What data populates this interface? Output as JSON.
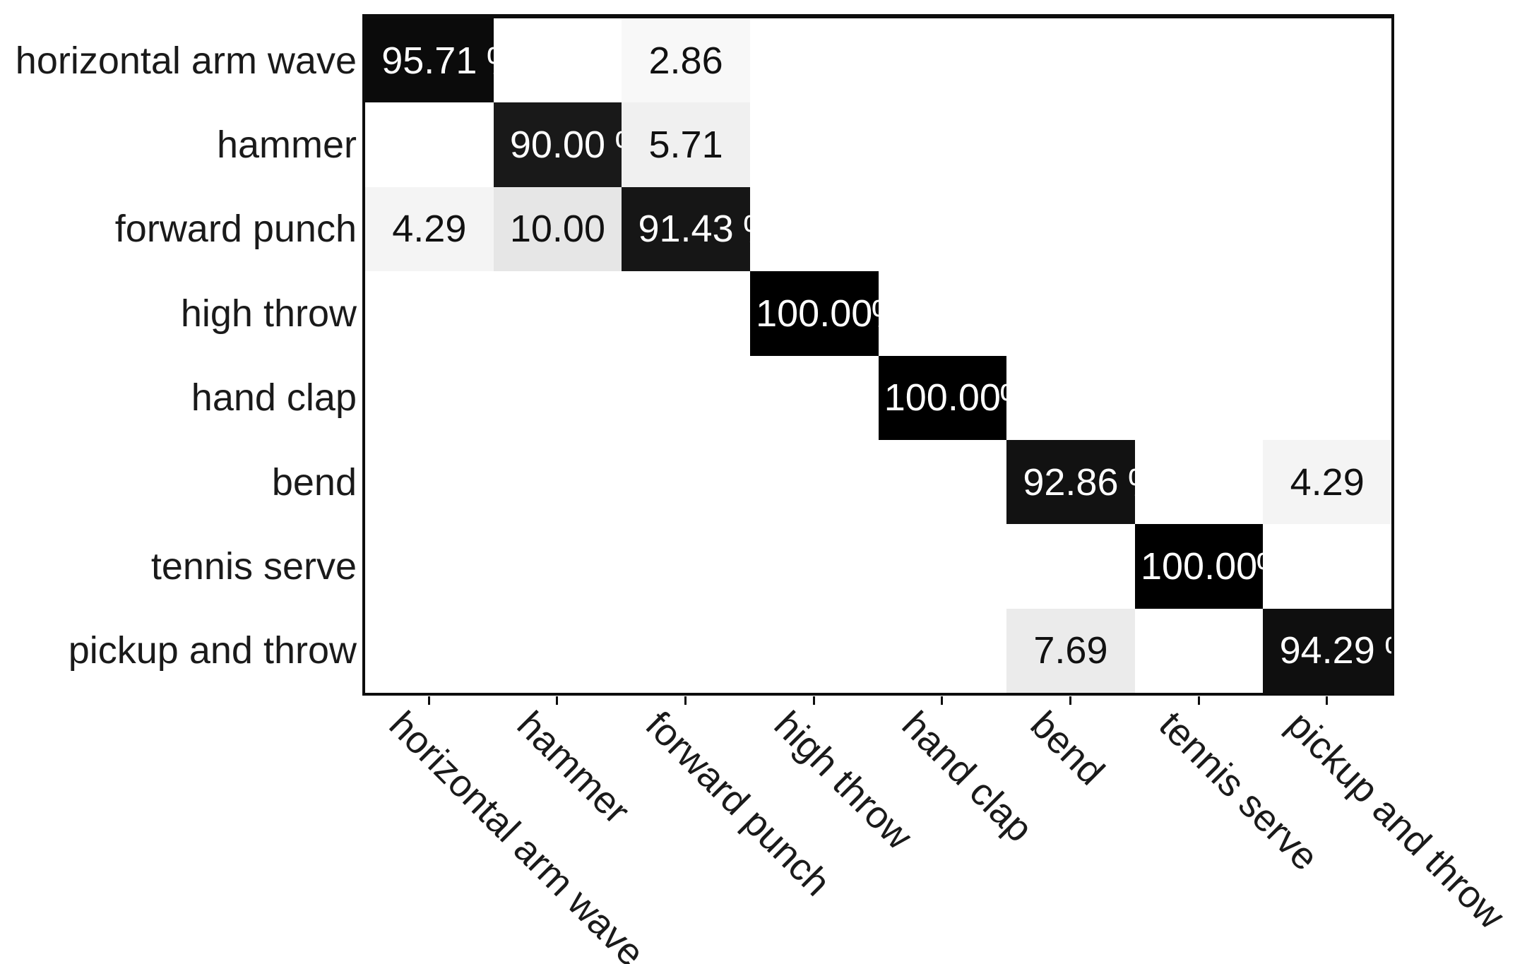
{
  "chart_data": {
    "type": "heatmap",
    "subtype": "confusion-matrix",
    "title": "",
    "classes": [
      "horizontal arm wave",
      "hammer",
      "forward punch",
      "high throw",
      "hand clap",
      "bend",
      "tennis serve",
      "pickup and throw"
    ],
    "matrix": [
      [
        "95.71",
        null,
        "2.86",
        null,
        null,
        null,
        null,
        null
      ],
      [
        null,
        "90.00",
        "5.71",
        null,
        null,
        null,
        null,
        null
      ],
      [
        "4.29",
        "10.00",
        "91.43",
        null,
        null,
        null,
        null,
        null
      ],
      [
        null,
        null,
        null,
        "100.00",
        null,
        null,
        null,
        null
      ],
      [
        null,
        null,
        null,
        null,
        "100.00",
        null,
        null,
        null
      ],
      [
        null,
        null,
        null,
        null,
        null,
        "92.86",
        null,
        "4.29"
      ],
      [
        null,
        null,
        null,
        null,
        null,
        null,
        "100.00",
        null
      ],
      [
        null,
        null,
        null,
        null,
        null,
        "7.69",
        null,
        "94.29"
      ]
    ],
    "value_unit": "percent",
    "colormap": {
      "low_value_color": "#ffffff",
      "high_value_color": "#000000",
      "scale_min": 0,
      "scale_max": 100
    },
    "cell_text_on_dark": "#ffffff",
    "cell_text_on_light": "#111111",
    "axes": {
      "x_tick_label_rotation_deg": 45,
      "y_tick_labels_position": "left",
      "x_tick_labels_position": "bottom"
    },
    "grid": false,
    "legend": false
  }
}
